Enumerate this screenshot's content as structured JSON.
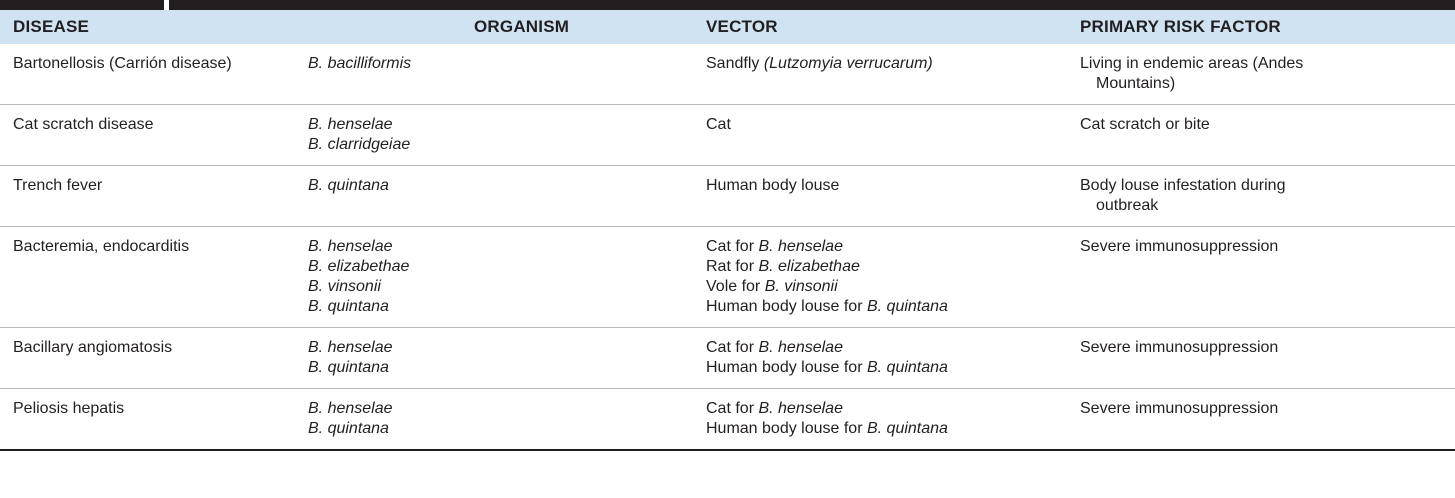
{
  "table": {
    "headers": {
      "disease": "DISEASE",
      "organism": "ORGANISM",
      "vector": "VECTOR",
      "risk": "PRIMARY RISK FACTOR"
    },
    "rows": [
      {
        "disease": "Bartonellosis (Carrión disease)",
        "organisms": [
          "B. bacilliformis"
        ],
        "vectors": [
          {
            "prefix": "Sandfly ",
            "italic": "(Lutzomyia verrucarum)"
          }
        ],
        "risk": [
          "Living in endemic areas (Andes",
          "Mountains)"
        ]
      },
      {
        "disease": "Cat scratch disease",
        "organisms": [
          "B. henselae",
          "B. clarridgeiae"
        ],
        "vectors": [
          {
            "prefix": "Cat",
            "italic": ""
          }
        ],
        "risk": [
          "Cat scratch or bite"
        ]
      },
      {
        "disease": "Trench fever",
        "organisms": [
          "B. quintana"
        ],
        "vectors": [
          {
            "prefix": "Human body louse",
            "italic": ""
          }
        ],
        "risk": [
          "Body louse infestation during",
          "outbreak"
        ]
      },
      {
        "disease": "Bacteremia, endocarditis",
        "organisms": [
          "B. henselae",
          "B. elizabethae",
          "B. vinsonii",
          "B. quintana"
        ],
        "vectors": [
          {
            "prefix": "Cat for ",
            "italic": "B. henselae"
          },
          {
            "prefix": "Rat for ",
            "italic": "B. elizabethae"
          },
          {
            "prefix": "Vole for ",
            "italic": "B. vinsonii"
          },
          {
            "prefix": "Human body louse for ",
            "italic": "B. quintana"
          }
        ],
        "risk": [
          "Severe immunosuppression"
        ]
      },
      {
        "disease": "Bacillary angiomatosis",
        "organisms": [
          "B. henselae",
          "B. quintana"
        ],
        "vectors": [
          {
            "prefix": "Cat for ",
            "italic": "B. henselae"
          },
          {
            "prefix": "Human body louse for ",
            "italic": "B. quintana"
          }
        ],
        "risk": [
          "Severe immunosuppression"
        ]
      },
      {
        "disease": "Peliosis hepatis",
        "organisms": [
          "B. henselae",
          "B. quintana"
        ],
        "vectors": [
          {
            "prefix": "Cat for ",
            "italic": "B. henselae"
          },
          {
            "prefix": "Human body louse for ",
            "italic": "B. quintana"
          }
        ],
        "risk": [
          "Severe immunosuppression"
        ]
      }
    ]
  }
}
